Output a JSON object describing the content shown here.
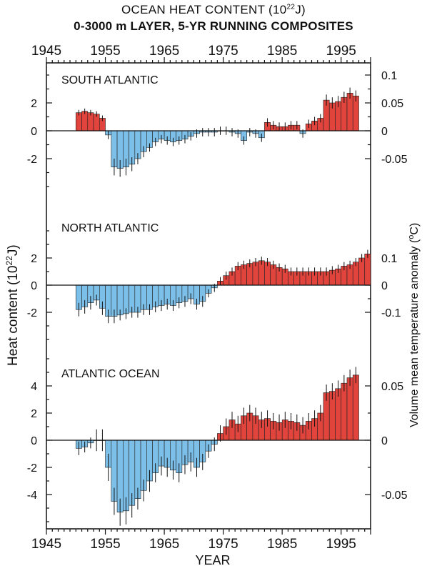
{
  "title_line1": "OCEAN HEAT CONTENT (10",
  "title_line1_sup": "22",
  "title_line1_end": "J)",
  "title_line2": "0-3000 m LAYER, 5-YR RUNNING COMPOSITES",
  "colors": {
    "positive": "#e0443c",
    "negative": "#7cbfe8",
    "frame": "#111111"
  },
  "chart_data": [
    {
      "type": "bar",
      "panel": "SOUTH ATLANTIC",
      "x_start": 1950,
      "x_step": 1,
      "xlim": [
        1945,
        2000
      ],
      "ylim": [
        -4.8,
        4.8
      ],
      "left_ticks": [
        2,
        0,
        -2
      ],
      "left_tick_labels": [
        "2",
        "0",
        "-2"
      ],
      "right_ticks": [
        0.1,
        0.05,
        0,
        -0.05
      ],
      "right_tick_labels": [
        "0.1",
        "0.05",
        "0",
        "-0.05"
      ],
      "right_scale": 0.025,
      "values": [
        1.3,
        1.4,
        1.3,
        1.2,
        0.9,
        -0.3,
        -2.6,
        -2.7,
        -2.6,
        -2.4,
        -2.0,
        -1.5,
        -1.2,
        -0.8,
        -0.6,
        -0.7,
        -0.8,
        -0.7,
        -0.6,
        -0.4,
        -0.2,
        -0.1,
        -0.1,
        -0.1,
        0.0,
        0.0,
        -0.1,
        -0.2,
        -0.7,
        -0.1,
        -0.2,
        -0.5,
        0.6,
        0.4,
        0.3,
        0.3,
        0.4,
        0.4,
        -0.2,
        0.5,
        0.7,
        0.9,
        2.2,
        2.0,
        2.1,
        2.4,
        2.7,
        2.5
      ],
      "errors": [
        0.2,
        0.2,
        0.2,
        0.2,
        0.2,
        0.3,
        0.6,
        0.6,
        0.6,
        0.5,
        0.4,
        0.4,
        0.3,
        0.3,
        0.3,
        0.3,
        0.3,
        0.3,
        0.3,
        0.3,
        0.3,
        0.3,
        0.3,
        0.3,
        0.3,
        0.3,
        0.3,
        0.3,
        0.3,
        0.3,
        0.3,
        0.3,
        0.3,
        0.3,
        0.3,
        0.3,
        0.3,
        0.3,
        0.3,
        0.3,
        0.3,
        0.3,
        0.4,
        0.4,
        0.4,
        0.4,
        0.4,
        0.4
      ]
    },
    {
      "type": "bar",
      "panel": "NORTH ATLANTIC",
      "x_start": 1950,
      "x_step": 1,
      "xlim": [
        1945,
        2000
      ],
      "ylim": [
        -4.8,
        4.8
      ],
      "left_ticks": [
        2,
        0,
        -2
      ],
      "left_tick_labels": [
        "2",
        "0",
        "-2"
      ],
      "right_ticks": [
        0.1,
        0,
        -0.1
      ],
      "right_tick_labels": [
        "0.1",
        "0",
        "-0.1"
      ],
      "right_scale": 0.05,
      "values": [
        -1.8,
        -1.6,
        -1.3,
        -1.1,
        -1.7,
        -2.3,
        -2.3,
        -2.2,
        -2.1,
        -2.0,
        -2.0,
        -1.8,
        -1.8,
        -1.6,
        -1.5,
        -1.4,
        -1.5,
        -1.3,
        -1.2,
        -1.0,
        -1.4,
        -1.2,
        -0.6,
        -0.2,
        0.3,
        0.7,
        1.0,
        1.4,
        1.5,
        1.6,
        1.7,
        1.8,
        1.7,
        1.5,
        1.3,
        1.2,
        1.0,
        1.0,
        1.0,
        1.0,
        1.0,
        1.0,
        1.0,
        1.1,
        1.2,
        1.4,
        1.5,
        1.7,
        2.0,
        2.3
      ],
      "errors": [
        0.5,
        0.5,
        0.5,
        0.4,
        0.5,
        0.5,
        0.5,
        0.4,
        0.4,
        0.4,
        0.4,
        0.4,
        0.4,
        0.4,
        0.4,
        0.4,
        0.4,
        0.4,
        0.4,
        0.4,
        0.4,
        0.4,
        0.3,
        0.3,
        0.3,
        0.3,
        0.3,
        0.3,
        0.3,
        0.3,
        0.3,
        0.3,
        0.3,
        0.3,
        0.3,
        0.3,
        0.3,
        0.3,
        0.3,
        0.3,
        0.3,
        0.3,
        0.3,
        0.3,
        0.3,
        0.3,
        0.3,
        0.3,
        0.3,
        0.3
      ]
    },
    {
      "type": "bar",
      "panel": "ATLANTIC OCEAN",
      "x_start": 1950,
      "x_step": 1,
      "xlim": [
        1945,
        2000
      ],
      "ylim": [
        -6.0,
        6.0
      ],
      "left_ticks": [
        4,
        2,
        0,
        -2,
        -4
      ],
      "left_tick_labels": [
        "4",
        "2",
        "0",
        "-2",
        "-4"
      ],
      "right_ticks": [
        0.05,
        0,
        -0.05
      ],
      "right_tick_labels": [
        "0.05",
        "0",
        "-0.05"
      ],
      "right_scale": 0.0125,
      "values": [
        -0.6,
        -0.5,
        -0.2,
        0.0,
        0.0,
        -2.0,
        -4.5,
        -5.3,
        -5.2,
        -4.8,
        -4.3,
        -3.7,
        -3.0,
        -2.4,
        -1.9,
        -2.0,
        -2.2,
        -2.4,
        -1.8,
        -1.6,
        -2.0,
        -1.6,
        -0.8,
        -0.3,
        0.5,
        1.0,
        1.5,
        1.2,
        1.8,
        2.0,
        1.8,
        1.5,
        1.6,
        1.4,
        1.3,
        1.5,
        1.4,
        1.3,
        1.1,
        1.4,
        1.6,
        2.0,
        3.5,
        3.6,
        3.8,
        4.2,
        4.6,
        4.8
      ],
      "errors": [
        0.5,
        0.4,
        0.4,
        0.8,
        0.8,
        1.0,
        1.0,
        1.0,
        1.0,
        0.9,
        0.8,
        0.8,
        0.8,
        0.7,
        0.7,
        0.7,
        0.7,
        0.7,
        0.7,
        0.7,
        0.7,
        0.6,
        0.5,
        0.5,
        0.6,
        0.6,
        0.6,
        0.6,
        0.6,
        0.6,
        0.6,
        0.6,
        0.6,
        0.6,
        0.6,
        0.6,
        0.6,
        0.6,
        0.6,
        0.6,
        0.6,
        0.6,
        0.6,
        0.6,
        0.6,
        0.6,
        0.6,
        0.6
      ]
    }
  ],
  "x_tick_labels": [
    "1945",
    "1955",
    "1965",
    "1975",
    "1985",
    "1995"
  ],
  "x_ticks": [
    1945,
    1955,
    1965,
    1975,
    1985,
    1995
  ],
  "x_title": "YEAR",
  "y_title_left": "Heat content (10",
  "y_title_left_sup": "22",
  "y_title_left_end": "J)",
  "y_title_right": "Volume mean temperature anomaly (",
  "y_title_right_sup": "o",
  "y_title_right_end": "C)"
}
